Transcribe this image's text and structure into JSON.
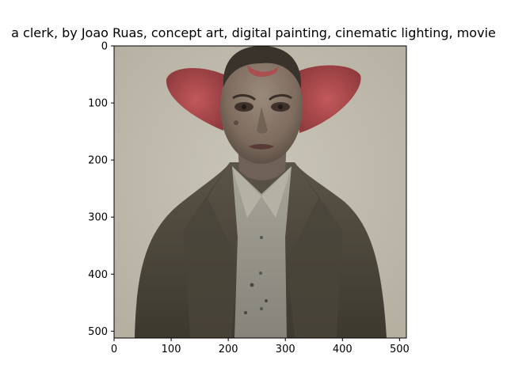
{
  "title": "a clerk,  by Joao Ruas, concept art, digital painting, cinematic lighting, movie",
  "image": {
    "subject": "portrait of a pale, gaunt clerk with large red ears and a dark coat over a grey shirt",
    "colors": {
      "background": "#bdb9ad",
      "skin": "#8a7a6c",
      "ears": "#b0464a",
      "coat": "#4f4a3e",
      "shirt": "#9c9a8e",
      "hair": "#3a332c"
    }
  },
  "axes": {
    "xlim": [
      0,
      512
    ],
    "ylim": [
      512,
      0
    ],
    "xticks": [
      "0",
      "100",
      "200",
      "300",
      "400",
      "500"
    ],
    "yticks": [
      "0",
      "100",
      "200",
      "300",
      "400",
      "500"
    ]
  }
}
